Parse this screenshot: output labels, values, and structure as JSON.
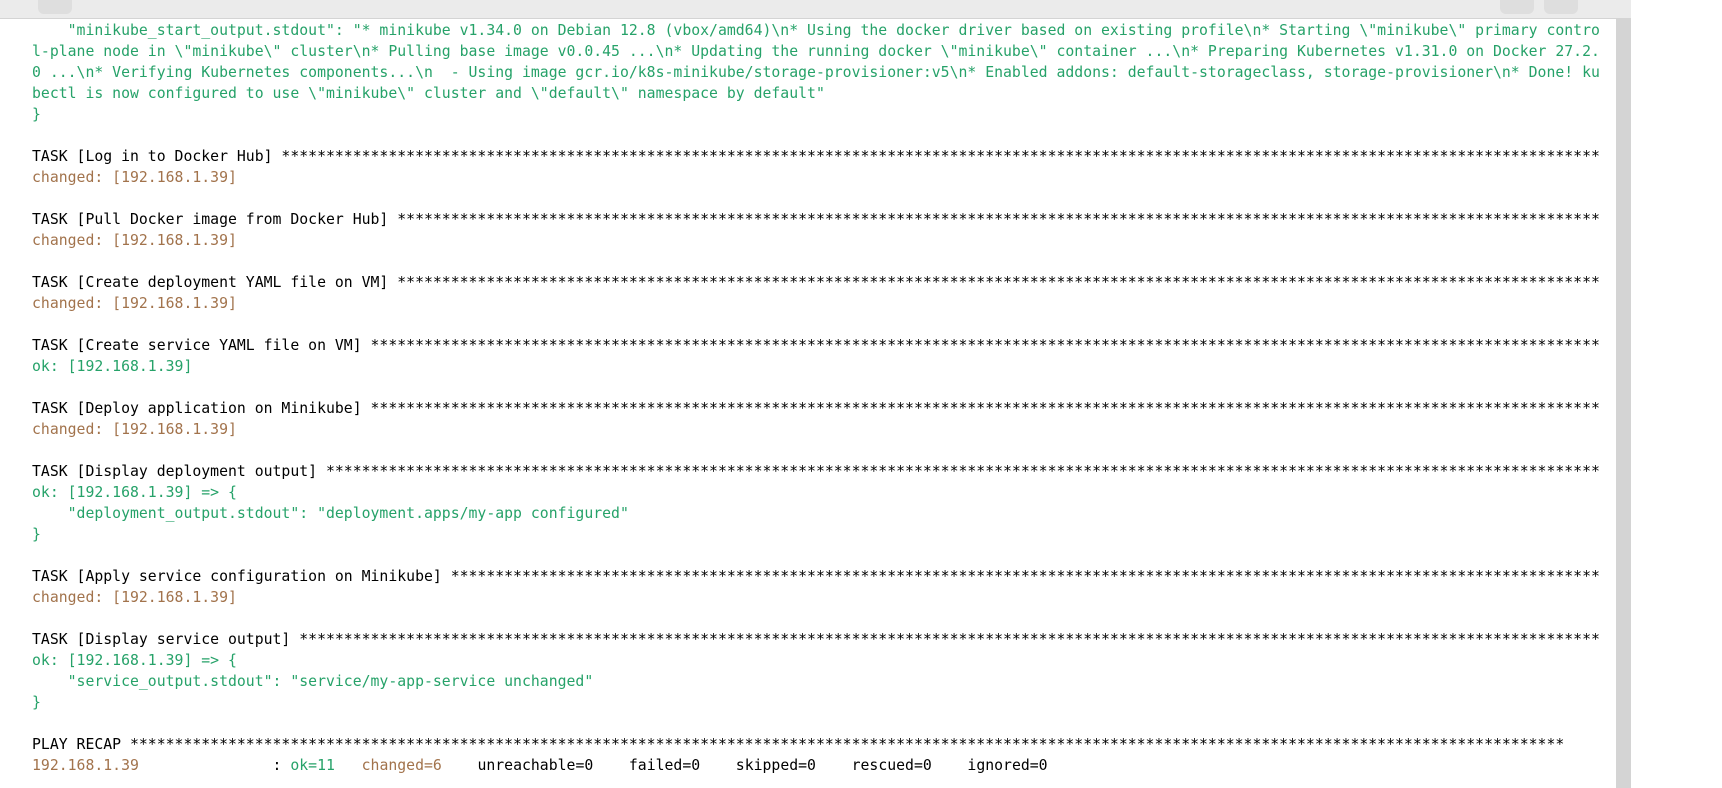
{
  "terminal": {
    "colors": {
      "ok": "#26a269",
      "changed": "#a2734c",
      "plain": "#000000"
    },
    "blocks": [
      {
        "lines": [
          {
            "tone": "ok",
            "text": "    \"minikube_start_output.stdout\": \"* minikube v1.34.0 on Debian 12.8 (vbox/amd64)\\n* Using the docker driver based on existing profile\\n* Starting \\\"minikube\\\" primary contro"
          },
          {
            "tone": "ok",
            "text": "l-plane node in \\\"minikube\\\" cluster\\n* Pulling base image v0.0.45 ...\\n* Updating the running docker \\\"minikube\\\" container ...\\n* Preparing Kubernetes v1.31.0 on Docker 27.2."
          },
          {
            "tone": "ok",
            "text": "0 ...\\n* Verifying Kubernetes components...\\n  - Using image gcr.io/k8s-minikube/storage-provisioner:v5\\n* Enabled addons: default-storageclass, storage-provisioner\\n* Done! ku"
          },
          {
            "tone": "ok",
            "text": "bectl is now configured to use \\\"minikube\\\" cluster and \\\"default\\\" namespace by default\""
          },
          {
            "tone": "ok",
            "text": "}"
          }
        ]
      },
      {
        "lines": [
          {
            "tone": "plain",
            "text": "TASK [Log in to Docker Hub] ****************************************************************************************************************************************************"
          },
          {
            "tone": "changed",
            "text": "changed: [192.168.1.39]"
          }
        ]
      },
      {
        "lines": [
          {
            "tone": "plain",
            "text": "TASK [Pull Docker image from Docker Hub] ***************************************************************************************************************************************"
          },
          {
            "tone": "changed",
            "text": "changed: [192.168.1.39]"
          }
        ]
      },
      {
        "lines": [
          {
            "tone": "plain",
            "text": "TASK [Create deployment YAML file on VM] ***************************************************************************************************************************************"
          },
          {
            "tone": "changed",
            "text": "changed: [192.168.1.39]"
          }
        ]
      },
      {
        "lines": [
          {
            "tone": "plain",
            "text": "TASK [Create service YAML file on VM] ******************************************************************************************************************************************"
          },
          {
            "tone": "ok",
            "text": "ok: [192.168.1.39]"
          }
        ]
      },
      {
        "lines": [
          {
            "tone": "plain",
            "text": "TASK [Deploy application on Minikube] ******************************************************************************************************************************************"
          },
          {
            "tone": "changed",
            "text": "changed: [192.168.1.39]"
          }
        ]
      },
      {
        "lines": [
          {
            "tone": "plain",
            "text": "TASK [Display deployment output] ***********************************************************************************************************************************************"
          },
          {
            "tone": "ok",
            "text": "ok: [192.168.1.39] => {"
          },
          {
            "tone": "ok",
            "text": "    \"deployment_output.stdout\": \"deployment.apps/my-app configured\""
          },
          {
            "tone": "ok",
            "text": "}"
          }
        ]
      },
      {
        "lines": [
          {
            "tone": "plain",
            "text": "TASK [Apply service configuration on Minikube] *********************************************************************************************************************************"
          },
          {
            "tone": "changed",
            "text": "changed: [192.168.1.39]"
          }
        ]
      },
      {
        "lines": [
          {
            "tone": "plain",
            "text": "TASK [Display service output] **************************************************************************************************************************************************"
          },
          {
            "tone": "ok",
            "text": "ok: [192.168.1.39] => {"
          },
          {
            "tone": "ok",
            "text": "    \"service_output.stdout\": \"service/my-app-service unchanged\""
          },
          {
            "tone": "ok",
            "text": "}"
          }
        ]
      },
      {
        "lines": [
          {
            "tone": "plain",
            "text": "PLAY RECAP *****************************************************************************************************************************************************************"
          },
          {
            "segments": [
              {
                "tone": "changed",
                "text": "192.168.1.39"
              },
              {
                "tone": "plain",
                "text": "               : "
              },
              {
                "tone": "ok",
                "text": "ok=11"
              },
              {
                "tone": "changed",
                "text": "   changed=6"
              },
              {
                "tone": "plain",
                "text": "    unreachable=0    failed=0    skipped=0    rescued=0    ignored=0"
              }
            ]
          }
        ]
      }
    ]
  }
}
